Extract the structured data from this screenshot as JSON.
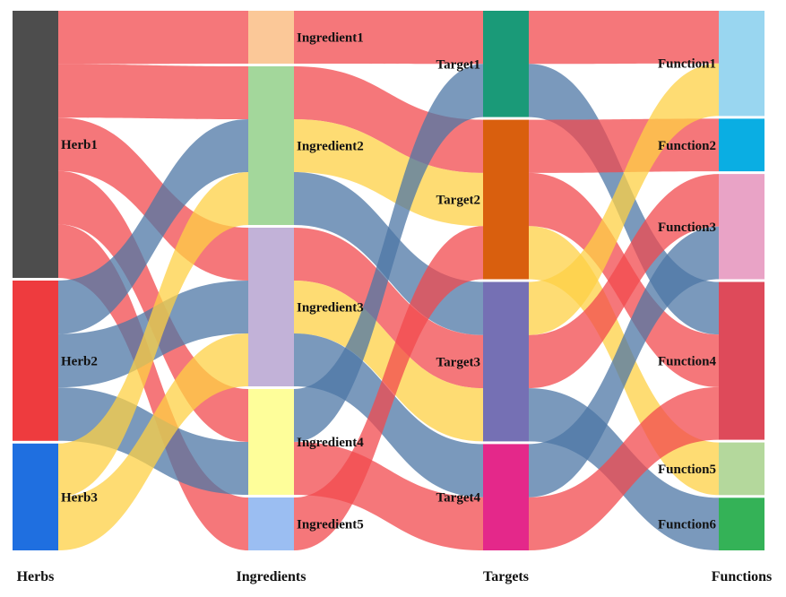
{
  "chart_data": {
    "type": "sankey",
    "columns": [
      {
        "name": "Herbs",
        "nodes": [
          "Herb1",
          "Herb2",
          "Herb3"
        ]
      },
      {
        "name": "Ingredients",
        "nodes": [
          "Ingredient1",
          "Ingredient2",
          "Ingredient3",
          "Ingredient4",
          "Ingredient5"
        ]
      },
      {
        "name": "Targets",
        "nodes": [
          "Target1",
          "Target2",
          "Target3",
          "Target4"
        ]
      },
      {
        "name": "Functions",
        "nodes": [
          "Function1",
          "Function2",
          "Function3",
          "Function4",
          "Function5",
          "Function6"
        ]
      }
    ],
    "node_colors": {
      "Herb1": "#4d4d4d",
      "Herb2": "#ee3b3e",
      "Herb3": "#1f6fe0",
      "Ingredient1": "#fbc898",
      "Ingredient2": "#a3d79b",
      "Ingredient3": "#c2b2d8",
      "Ingredient4": "#fefe9a",
      "Ingredient5": "#9bbef2",
      "Target1": "#1a9a78",
      "Target2": "#d95f0e",
      "Target3": "#7570b4",
      "Target4": "#e4288a",
      "Function1": "#99d6f0",
      "Function2": "#0aaee3",
      "Function3": "#e9a3c6",
      "Function4": "#de4a5a",
      "Function5": "#b4d89c",
      "Function6": "#34b257"
    },
    "link_colors": {
      "red": "#f24a4d",
      "blue": "#4e77a6",
      "yellow": "#fdd044"
    },
    "links": [
      {
        "source": "Herb1",
        "target": "Ingredient1",
        "value": 1,
        "color": "red"
      },
      {
        "source": "Herb1",
        "target": "Ingredient2",
        "value": 1,
        "color": "red"
      },
      {
        "source": "Herb1",
        "target": "Ingredient3",
        "value": 1,
        "color": "red"
      },
      {
        "source": "Herb1",
        "target": "Ingredient4",
        "value": 1,
        "color": "red"
      },
      {
        "source": "Herb1",
        "target": "Ingredient5",
        "value": 1,
        "color": "red"
      },
      {
        "source": "Herb2",
        "target": "Ingredient2",
        "value": 1,
        "color": "blue"
      },
      {
        "source": "Herb2",
        "target": "Ingredient3",
        "value": 1,
        "color": "blue"
      },
      {
        "source": "Herb2",
        "target": "Ingredient4",
        "value": 1,
        "color": "blue"
      },
      {
        "source": "Herb3",
        "target": "Ingredient2",
        "value": 1,
        "color": "yellow"
      },
      {
        "source": "Herb3",
        "target": "Ingredient3",
        "value": 1,
        "color": "yellow"
      },
      {
        "source": "Ingredient1",
        "target": "Target1",
        "value": 1,
        "color": "red"
      },
      {
        "source": "Ingredient2",
        "target": "Target2",
        "value": 1,
        "color": "red"
      },
      {
        "source": "Ingredient2",
        "target": "Target2",
        "value": 1,
        "color": "yellow"
      },
      {
        "source": "Ingredient2",
        "target": "Target3",
        "value": 1,
        "color": "blue"
      },
      {
        "source": "Ingredient3",
        "target": "Target3",
        "value": 1,
        "color": "red"
      },
      {
        "source": "Ingredient3",
        "target": "Target3",
        "value": 1,
        "color": "yellow"
      },
      {
        "source": "Ingredient3",
        "target": "Target4",
        "value": 1,
        "color": "blue"
      },
      {
        "source": "Ingredient4",
        "target": "Target1",
        "value": 1,
        "color": "blue"
      },
      {
        "source": "Ingredient4",
        "target": "Target4",
        "value": 1,
        "color": "red"
      },
      {
        "source": "Ingredient5",
        "target": "Target2",
        "value": 1,
        "color": "red"
      },
      {
        "source": "Target1",
        "target": "Function1",
        "value": 1,
        "color": "red"
      },
      {
        "source": "Target1",
        "target": "Function4",
        "value": 1,
        "color": "blue"
      },
      {
        "source": "Target2",
        "target": "Function2",
        "value": 1,
        "color": "red"
      },
      {
        "source": "Target2",
        "target": "Function4",
        "value": 1,
        "color": "red"
      },
      {
        "source": "Target2",
        "target": "Function5",
        "value": 1,
        "color": "yellow"
      },
      {
        "source": "Target3",
        "target": "Function3",
        "value": 1,
        "color": "red"
      },
      {
        "source": "Target3",
        "target": "Function6",
        "value": 1,
        "color": "blue"
      },
      {
        "source": "Target3",
        "target": "Function1",
        "value": 1,
        "color": "yellow"
      },
      {
        "source": "Target4",
        "target": "Function4",
        "value": 1,
        "color": "red"
      },
      {
        "source": "Target4",
        "target": "Function3",
        "value": 1,
        "color": "blue"
      }
    ]
  }
}
